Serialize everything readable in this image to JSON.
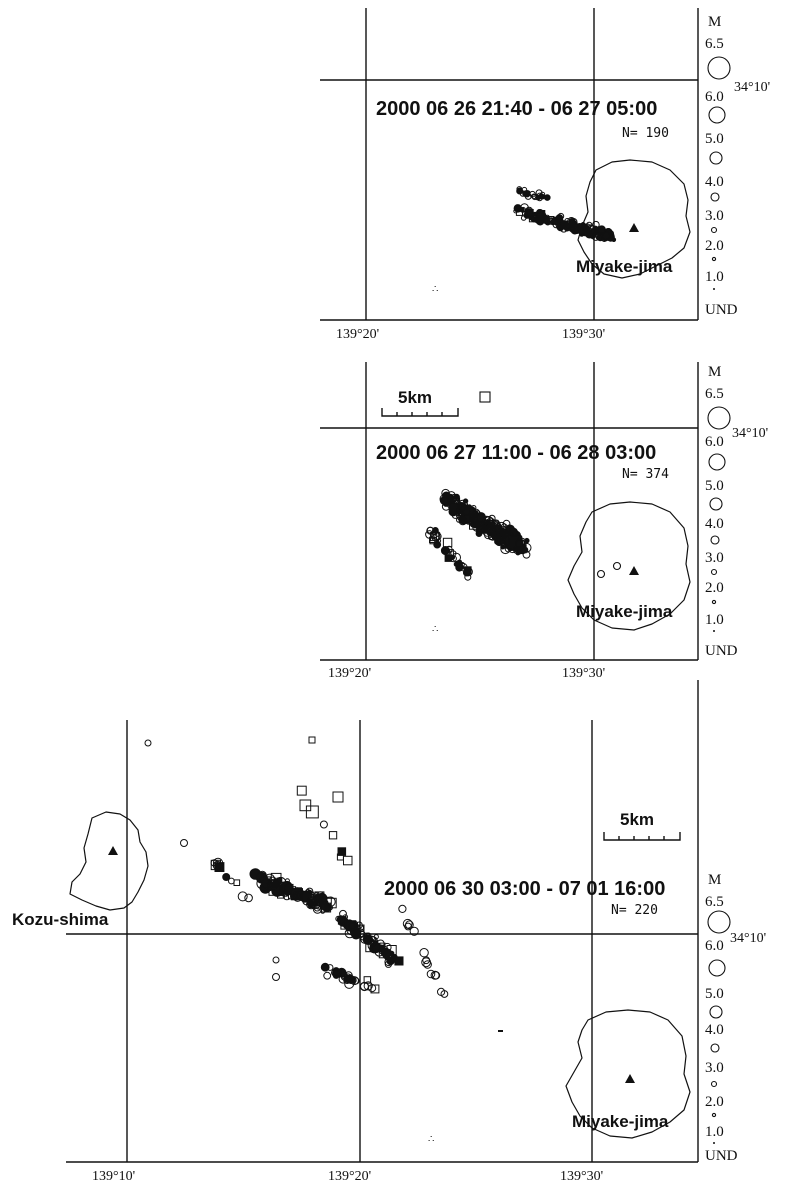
{
  "panels": [
    {
      "period": "2000 06 26 21:40 - 06 27 05:00",
      "count": "N= 190",
      "islands": [
        "Miyake-jima"
      ],
      "lon_ticks": [
        "139°20'",
        "139°30'"
      ],
      "lat_label": "34°10'",
      "scale_bar": "",
      "magnitude_legend": [
        "M",
        "6.5",
        "6.0",
        "5.0",
        "4.0",
        "3.0",
        "2.0",
        "1.0",
        "UND"
      ]
    },
    {
      "period": "2000 06 27 11:00 - 06 28 03:00",
      "count": "N= 374",
      "islands": [
        "Miyake-jima"
      ],
      "lon_ticks": [
        "139°20'",
        "139°30'"
      ],
      "lat_label": "34°10'",
      "scale_bar": "5km",
      "magnitude_legend": [
        "M",
        "6.5",
        "6.0",
        "5.0",
        "4.0",
        "3.0",
        "2.0",
        "1.0",
        "UND"
      ]
    },
    {
      "period": "2000 06 30 03:00 - 07 01 16:00",
      "count": "N= 220",
      "islands": [
        "Kozu-shima",
        "Miyake-jima"
      ],
      "lon_ticks": [
        "139°10'",
        "139°20'",
        "139°30'"
      ],
      "lat_label": "34°10'",
      "scale_bar": "5km",
      "magnitude_legend": [
        "M",
        "6.5",
        "6.0",
        "5.0",
        "4.0",
        "3.0",
        "2.0",
        "1.0",
        "UND"
      ]
    }
  ],
  "symbols": {
    "circle": "hypocenter (circle, size by magnitude)",
    "square": "hypocenter (square marker)",
    "triangle": "volcano summit"
  },
  "colors": {
    "ink": "#111111",
    "paper": "#ffffff"
  }
}
